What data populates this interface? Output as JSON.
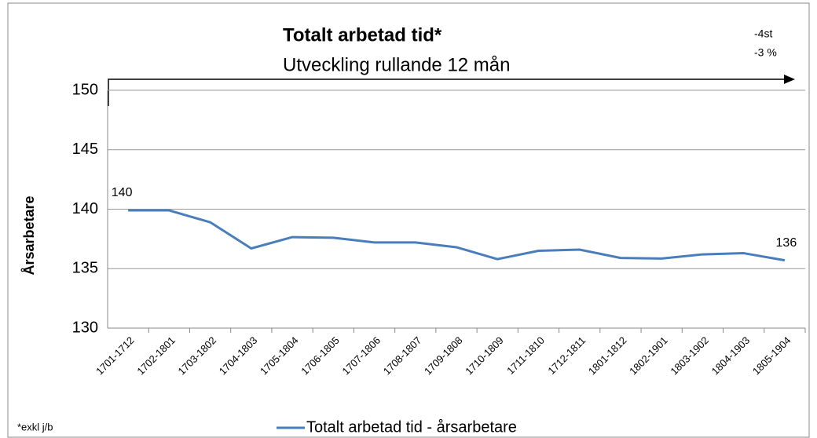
{
  "chart_data": {
    "type": "line",
    "title": "Totalt arbetad tid*",
    "subtitle": "Utveckling rullande 12 mån",
    "annotations": [
      "-4st",
      "-3 %",
      "*exkl j/b"
    ],
    "y_label": "Årsarbetare",
    "categories": [
      "1701-1712",
      "1702-1801",
      "1703-1802",
      "1704-1803",
      "1705-1804",
      "1706-1805",
      "1707-1806",
      "1708-1807",
      "1709-1808",
      "1710-1809",
      "1711-1810",
      "1712-1811",
      "1801-1812",
      "1802-1901",
      "1803-1902",
      "1804-1903",
      "1805-1904"
    ],
    "series": [
      {
        "name": "Totalt arbetad tid -  årsarbetare",
        "color": "#4a7ebb",
        "values": [
          139.9,
          139.9,
          138.9,
          136.7,
          137.65,
          137.6,
          137.2,
          137.2,
          136.8,
          135.8,
          136.5,
          136.6,
          135.9,
          135.85,
          136.2,
          136.3,
          135.7
        ],
        "value_labels": [
          "140",
          null,
          null,
          null,
          null,
          null,
          null,
          null,
          null,
          null,
          null,
          null,
          null,
          null,
          null,
          null,
          "136"
        ]
      }
    ],
    "ylim": [
      130,
      150
    ],
    "yticks": [
      130,
      135,
      140,
      145,
      150
    ],
    "grid": true
  }
}
